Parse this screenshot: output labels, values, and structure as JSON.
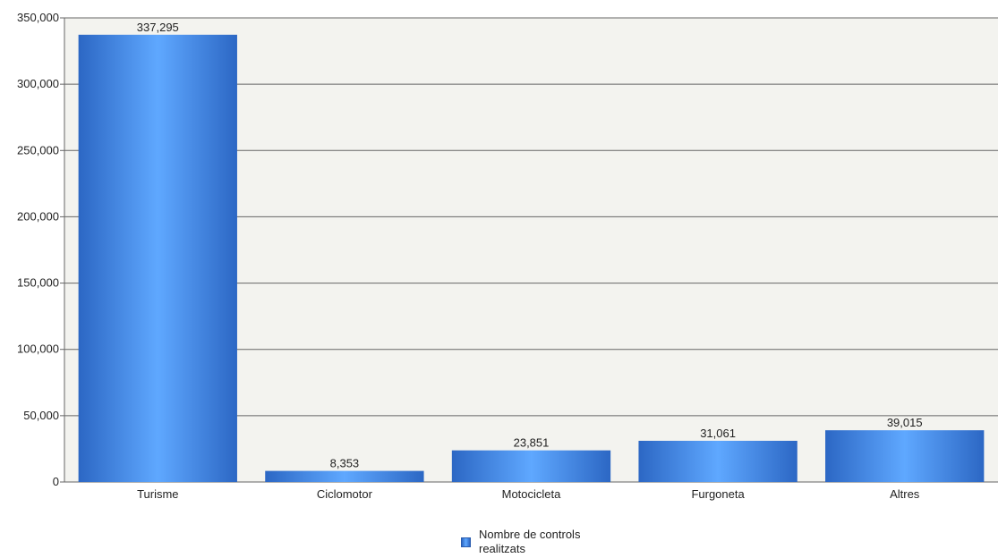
{
  "chart_data": {
    "type": "bar",
    "categories": [
      "Turisme",
      "Ciclomotor",
      "Motocicleta",
      "Furgoneta",
      "Altres"
    ],
    "series": [
      {
        "name": "Nombre de controls realitzats",
        "values": [
          337295,
          8353,
          23851,
          31061,
          39015
        ]
      }
    ],
    "value_labels": [
      "337,295",
      "8,353",
      "23,851",
      "31,061",
      "39,015"
    ],
    "ylim": [
      0,
      350000
    ],
    "yticks": [
      0,
      50000,
      100000,
      150000,
      200000,
      250000,
      300000,
      350000
    ],
    "ytick_labels": [
      "0",
      "50,000",
      "100,000",
      "150,000",
      "200,000",
      "250,000",
      "300,000",
      "350,000"
    ],
    "grid": true,
    "legend_position": "bottom-center",
    "colors": {
      "bar_edge": "#2c67c4",
      "bar_center": "#5fa8ff",
      "plot_background": "#f3f3ef",
      "gridline": "#666666"
    }
  },
  "legend": {
    "label": "Nombre de controls realitzats"
  }
}
